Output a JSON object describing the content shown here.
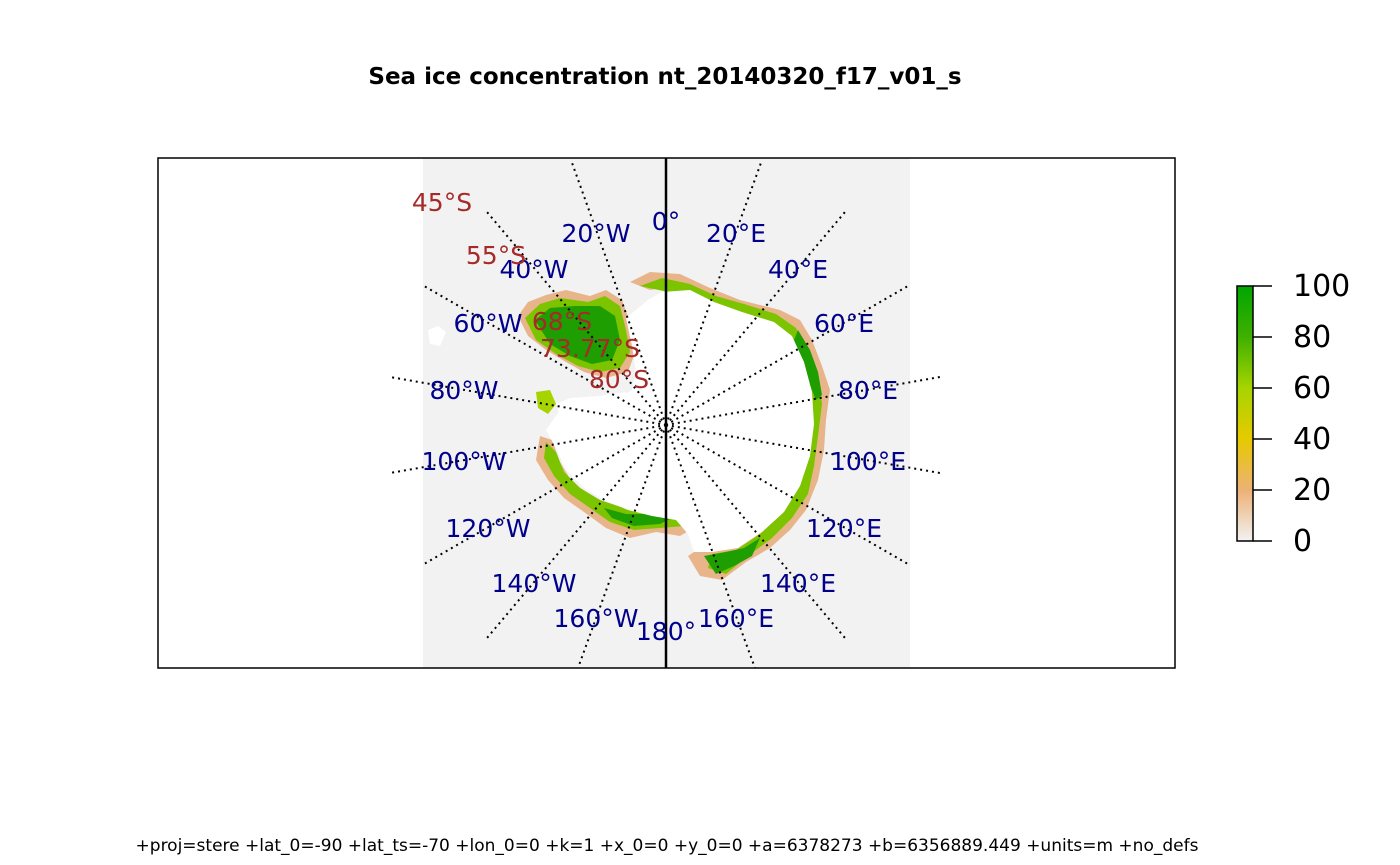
{
  "title": "Sea ice concentration nt_20140320_f17_v01_s",
  "projection": "+proj=stere +lat_0=-90 +lat_ts=-70 +lon_0=0 +k=1 +x_0=0 +y_0=0 +a=6378273 +b=6356889.449 +units=m +no_defs",
  "graticule": {
    "longitude_labels": [
      "0°",
      "20°E",
      "40°E",
      "60°E",
      "80°E",
      "100°E",
      "120°E",
      "140°E",
      "160°E",
      "180°",
      "160°W",
      "140°W",
      "120°W",
      "100°W",
      "80°W",
      "60°W",
      "40°W",
      "20°W"
    ],
    "latitude_labels": [
      "45°S",
      "55°S",
      "68°S",
      "73.77°S",
      "80°S"
    ],
    "longitude_label_color": "#00008B",
    "latitude_label_color": "#A52A2A"
  },
  "legend": {
    "ticks": [
      "100",
      "80",
      "60",
      "40",
      "20",
      "0"
    ],
    "colors": [
      "#F2F2F2",
      "#ECB176",
      "#E6CA00",
      "#A6D400",
      "#3FB000",
      "#00A600"
    ]
  },
  "colors": {
    "panel": "#F2F2F2",
    "ice_high": "#1E9E00",
    "ice_mid": "#7CC300",
    "ice_edge": "#E8B58A",
    "land": "#FFFFFF"
  }
}
